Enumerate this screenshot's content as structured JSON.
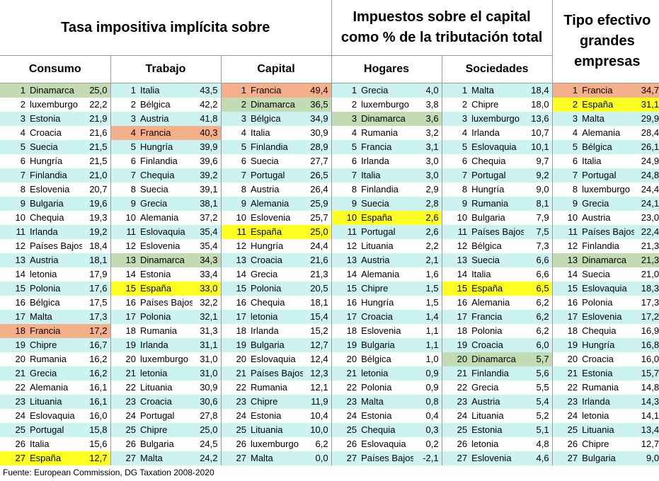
{
  "headers": {
    "tasa_title": "Tasa impositiva implícita sobre",
    "impuestos_title_line1": "Impuestos sobre el capital",
    "impuestos_title_line2": "como % de la tributación total",
    "tipo_line1": "Tipo efectivo",
    "tipo_line2": "grandes",
    "tipo_line3": "empresas",
    "sub": [
      "Consumo",
      "Trabajo",
      "Capital",
      "Hogares",
      "Sociedades"
    ]
  },
  "colors": {
    "cyan": "#ccf2f2",
    "green": "#c3dbb3",
    "orange": "#f4b08a",
    "yellow": "#ffff22"
  },
  "rows": [
    {
      "bg": "cyan",
      "cells": [
        [
          "1",
          "Dinamarca",
          "25,0",
          "green"
        ],
        [
          "1",
          "Italia",
          "43,5",
          ""
        ],
        [
          "1",
          "Francia",
          "49,4",
          "orange"
        ],
        [
          "1",
          "Grecia",
          "4,0",
          ""
        ],
        [
          "1",
          "Malta",
          "18,4",
          ""
        ],
        [
          "1",
          "Francia",
          "34,7",
          "orange"
        ]
      ]
    },
    {
      "bg": "white",
      "cells": [
        [
          "2",
          "luxemburgo",
          "22,2",
          ""
        ],
        [
          "2",
          "Bélgica",
          "42,2",
          ""
        ],
        [
          "2",
          "Dinamarca",
          "36,5",
          "green"
        ],
        [
          "2",
          "luxemburgo",
          "3,8",
          ""
        ],
        [
          "2",
          "Chipre",
          "18,0",
          ""
        ],
        [
          "2",
          "España",
          "31,1",
          "yellow"
        ]
      ]
    },
    {
      "bg": "cyan",
      "cells": [
        [
          "3",
          "Estonia",
          "21,9",
          ""
        ],
        [
          "3",
          "Austria",
          "41,8",
          ""
        ],
        [
          "3",
          "Bélgica",
          "34,9",
          ""
        ],
        [
          "3",
          "Dinamarca",
          "3,6",
          "green"
        ],
        [
          "3",
          "luxemburgo",
          "13,6",
          ""
        ],
        [
          "3",
          "Malta",
          "29,9",
          ""
        ]
      ]
    },
    {
      "bg": "white",
      "cells": [
        [
          "4",
          "Croacia",
          "21,6",
          ""
        ],
        [
          "4",
          "Francia",
          "40,3",
          "orange"
        ],
        [
          "4",
          "Italia",
          "30,9",
          ""
        ],
        [
          "4",
          "Rumania",
          "3,2",
          ""
        ],
        [
          "4",
          "Irlanda",
          "10,7",
          ""
        ],
        [
          "4",
          "Alemania",
          "28,4",
          ""
        ]
      ]
    },
    {
      "bg": "cyan",
      "cells": [
        [
          "5",
          "Suecia",
          "21,5",
          ""
        ],
        [
          "5",
          "Hungría",
          "39,9",
          ""
        ],
        [
          "5",
          "Finlandia",
          "28,9",
          ""
        ],
        [
          "5",
          "Francia",
          "3,1",
          ""
        ],
        [
          "5",
          "Eslovaquia",
          "10,1",
          ""
        ],
        [
          "5",
          "Bélgica",
          "26,1",
          ""
        ]
      ]
    },
    {
      "bg": "white",
      "cells": [
        [
          "6",
          "Hungría",
          "21,5",
          ""
        ],
        [
          "6",
          "Finlandia",
          "39,6",
          ""
        ],
        [
          "6",
          "Suecia",
          "27,7",
          ""
        ],
        [
          "6",
          "Irlanda",
          "3,0",
          ""
        ],
        [
          "6",
          "Chequia",
          "9,7",
          ""
        ],
        [
          "6",
          "Italia",
          "24,9",
          ""
        ]
      ]
    },
    {
      "bg": "cyan",
      "cells": [
        [
          "7",
          "Finlandia",
          "21,0",
          ""
        ],
        [
          "7",
          "Chequia",
          "39,2",
          ""
        ],
        [
          "7",
          "Portugal",
          "26,5",
          ""
        ],
        [
          "7",
          "Italia",
          "3,0",
          ""
        ],
        [
          "7",
          "Portugal",
          "9,2",
          ""
        ],
        [
          "7",
          "Portugal",
          "24,8",
          ""
        ]
      ]
    },
    {
      "bg": "white",
      "cells": [
        [
          "8",
          "Eslovenia",
          "20,7",
          ""
        ],
        [
          "8",
          "Suecia",
          "39,1",
          ""
        ],
        [
          "8",
          "Austria",
          "26,4",
          ""
        ],
        [
          "8",
          "Finlandia",
          "2,9",
          ""
        ],
        [
          "8",
          "Hungría",
          "9,0",
          ""
        ],
        [
          "8",
          "luxemburgo",
          "24,4",
          ""
        ]
      ]
    },
    {
      "bg": "cyan",
      "cells": [
        [
          "9",
          "Bulgaria",
          "19,6",
          ""
        ],
        [
          "9",
          "Grecia",
          "38,1",
          ""
        ],
        [
          "9",
          "Alemania",
          "25,9",
          ""
        ],
        [
          "9",
          "Suecia",
          "2,8",
          ""
        ],
        [
          "9",
          "Rumania",
          "8,1",
          ""
        ],
        [
          "9",
          "Grecia",
          "24,1",
          ""
        ]
      ]
    },
    {
      "bg": "white",
      "cells": [
        [
          "10",
          "Chequia",
          "19,3",
          ""
        ],
        [
          "10",
          "Alemania",
          "37,2",
          ""
        ],
        [
          "10",
          "Eslovenia",
          "25,7",
          ""
        ],
        [
          "10",
          "España",
          "2,6",
          "yellow"
        ],
        [
          "10",
          "Bulgaria",
          "7,9",
          ""
        ],
        [
          "10",
          "Austria",
          "23,0",
          ""
        ]
      ]
    },
    {
      "bg": "cyan",
      "cells": [
        [
          "11",
          "Irlanda",
          "19,2",
          ""
        ],
        [
          "11",
          "Eslovaquia",
          "35,4",
          ""
        ],
        [
          "11",
          "España",
          "25,0",
          "yellow"
        ],
        [
          "11",
          "Portugal",
          "2,6",
          ""
        ],
        [
          "11",
          "Países Bajos",
          "7,5",
          ""
        ],
        [
          "11",
          "Países Bajos",
          "22,4",
          ""
        ]
      ]
    },
    {
      "bg": "white",
      "cells": [
        [
          "12",
          "Países Bajos",
          "18,4",
          ""
        ],
        [
          "12",
          "Eslovenia",
          "35,4",
          ""
        ],
        [
          "12",
          "Hungría",
          "24,4",
          ""
        ],
        [
          "12",
          "Lituania",
          "2,2",
          ""
        ],
        [
          "12",
          "Bélgica",
          "7,3",
          ""
        ],
        [
          "12",
          "Finlandia",
          "21,3",
          ""
        ]
      ]
    },
    {
      "bg": "cyan",
      "cells": [
        [
          "13",
          "Austria",
          "18,1",
          ""
        ],
        [
          "13",
          "Dinamarca",
          "34,3",
          "green"
        ],
        [
          "13",
          "Croacia",
          "21,6",
          ""
        ],
        [
          "13",
          "Austria",
          "2,1",
          ""
        ],
        [
          "13",
          "Suecia",
          "6,6",
          ""
        ],
        [
          "13",
          "Dinamarca",
          "21,3",
          "green"
        ]
      ]
    },
    {
      "bg": "white",
      "cells": [
        [
          "14",
          "letonia",
          "17,9",
          ""
        ],
        [
          "14",
          "Estonia",
          "33,4",
          ""
        ],
        [
          "14",
          "Grecia",
          "21,3",
          ""
        ],
        [
          "14",
          "Alemania",
          "1,6",
          ""
        ],
        [
          "14",
          "Italia",
          "6,6",
          ""
        ],
        [
          "14",
          "Suecia",
          "21,0",
          ""
        ]
      ]
    },
    {
      "bg": "cyan",
      "cells": [
        [
          "15",
          "Polonia",
          "17,6",
          ""
        ],
        [
          "15",
          "España",
          "33,0",
          "yellow"
        ],
        [
          "15",
          "Polonia",
          "20,5",
          ""
        ],
        [
          "15",
          "Chipre",
          "1,5",
          ""
        ],
        [
          "15",
          "España",
          "6,5",
          "yellow"
        ],
        [
          "15",
          "Eslovaquia",
          "18,3",
          ""
        ]
      ]
    },
    {
      "bg": "white",
      "cells": [
        [
          "16",
          "Bélgica",
          "17,5",
          ""
        ],
        [
          "16",
          "Países Bajos",
          "32,2",
          ""
        ],
        [
          "16",
          "Chequia",
          "18,1",
          ""
        ],
        [
          "16",
          "Hungría",
          "1,5",
          ""
        ],
        [
          "16",
          "Alemania",
          "6,2",
          ""
        ],
        [
          "16",
          "Polonia",
          "17,3",
          ""
        ]
      ]
    },
    {
      "bg": "cyan",
      "cells": [
        [
          "17",
          "Malta",
          "17,3",
          ""
        ],
        [
          "17",
          "Polonia",
          "32,1",
          ""
        ],
        [
          "17",
          "letonia",
          "15,4",
          ""
        ],
        [
          "17",
          "Croacia",
          "1,4",
          ""
        ],
        [
          "17",
          "Francia",
          "6,2",
          ""
        ],
        [
          "17",
          "Eslovenia",
          "17,2",
          ""
        ]
      ]
    },
    {
      "bg": "white",
      "cells": [
        [
          "18",
          "Francia",
          "17,2",
          "orange"
        ],
        [
          "18",
          "Rumania",
          "31,3",
          ""
        ],
        [
          "18",
          "Irlanda",
          "15,2",
          ""
        ],
        [
          "18",
          "Eslovenia",
          "1,1",
          ""
        ],
        [
          "18",
          "Polonia",
          "6,2",
          ""
        ],
        [
          "18",
          "Chequia",
          "16,9",
          ""
        ]
      ]
    },
    {
      "bg": "cyan",
      "cells": [
        [
          "19",
          "Chipre",
          "16,7",
          ""
        ],
        [
          "19",
          "Irlanda",
          "31,1",
          ""
        ],
        [
          "19",
          "Bulgaria",
          "12,7",
          ""
        ],
        [
          "19",
          "Bulgaria",
          "1,1",
          ""
        ],
        [
          "19",
          "Croacia",
          "6,0",
          ""
        ],
        [
          "19",
          "Hungría",
          "16,8",
          ""
        ]
      ]
    },
    {
      "bg": "white",
      "cells": [
        [
          "20",
          "Rumania",
          "16,2",
          ""
        ],
        [
          "20",
          "luxemburgo",
          "31,0",
          ""
        ],
        [
          "20",
          "Eslovaquia",
          "12,4",
          ""
        ],
        [
          "20",
          "Bélgica",
          "1,0",
          ""
        ],
        [
          "20",
          "Dinamarca",
          "5,7",
          "green"
        ],
        [
          "20",
          "Croacia",
          "16,0",
          ""
        ]
      ]
    },
    {
      "bg": "cyan",
      "cells": [
        [
          "21",
          "Grecia",
          "16,2",
          ""
        ],
        [
          "21",
          "letonia",
          "31,0",
          ""
        ],
        [
          "21",
          "Países Bajos",
          "12,3",
          ""
        ],
        [
          "21",
          "letonia",
          "0,9",
          ""
        ],
        [
          "21",
          "Finlandia",
          "5,6",
          ""
        ],
        [
          "21",
          "Estonia",
          "15,7",
          ""
        ]
      ]
    },
    {
      "bg": "white",
      "cells": [
        [
          "22",
          "Alemania",
          "16,1",
          ""
        ],
        [
          "22",
          "Lituania",
          "30,9",
          ""
        ],
        [
          "22",
          "Rumania",
          "12,1",
          ""
        ],
        [
          "22",
          "Polonia",
          "0,9",
          ""
        ],
        [
          "22",
          "Grecia",
          "5,5",
          ""
        ],
        [
          "22",
          "Rumania",
          "14,8",
          ""
        ]
      ]
    },
    {
      "bg": "cyan",
      "cells": [
        [
          "23",
          "Lituania",
          "16,1",
          ""
        ],
        [
          "23",
          "Croacia",
          "30,6",
          ""
        ],
        [
          "23",
          "Chipre",
          "11,9",
          ""
        ],
        [
          "23",
          "Malta",
          "0,8",
          ""
        ],
        [
          "23",
          "Austria",
          "5,4",
          ""
        ],
        [
          "23",
          "Irlanda",
          "14,3",
          ""
        ]
      ]
    },
    {
      "bg": "white",
      "cells": [
        [
          "24",
          "Eslovaquia",
          "16,0",
          ""
        ],
        [
          "24",
          "Portugal",
          "27,8",
          ""
        ],
        [
          "24",
          "Estonia",
          "10,4",
          ""
        ],
        [
          "24",
          "Estonia",
          "0,4",
          ""
        ],
        [
          "24",
          "Lituania",
          "5,2",
          ""
        ],
        [
          "24",
          "letonia",
          "14,1",
          ""
        ]
      ]
    },
    {
      "bg": "cyan",
      "cells": [
        [
          "25",
          "Portugal",
          "15,8",
          ""
        ],
        [
          "25",
          "Chipre",
          "25,0",
          ""
        ],
        [
          "25",
          "Lituania",
          "10,0",
          ""
        ],
        [
          "25",
          "Chequia",
          "0,3",
          ""
        ],
        [
          "25",
          "Estonia",
          "5,1",
          ""
        ],
        [
          "25",
          "Lituania",
          "13,4",
          ""
        ]
      ]
    },
    {
      "bg": "white",
      "cells": [
        [
          "26",
          "Italia",
          "15,6",
          ""
        ],
        [
          "26",
          "Bulgaria",
          "24,5",
          ""
        ],
        [
          "26",
          "luxemburgo",
          "6,2",
          ""
        ],
        [
          "26",
          "Eslovaquia",
          "0,2",
          ""
        ],
        [
          "26",
          "letonia",
          "4,8",
          ""
        ],
        [
          "26",
          "Chipre",
          "12,7",
          ""
        ]
      ]
    },
    {
      "bg": "cyan",
      "cells": [
        [
          "27",
          "España",
          "12,7",
          "yellow"
        ],
        [
          "27",
          "Malta",
          "24,2",
          ""
        ],
        [
          "27",
          "Malta",
          "0,0",
          ""
        ],
        [
          "27",
          "Países Bajos",
          "-2,1",
          ""
        ],
        [
          "27",
          "Eslovenia",
          "4,6",
          ""
        ],
        [
          "27",
          "Bulgaria",
          "9,0",
          ""
        ]
      ]
    }
  ],
  "source": "Fuente: European Commission, DG Taxation 2008-2020"
}
